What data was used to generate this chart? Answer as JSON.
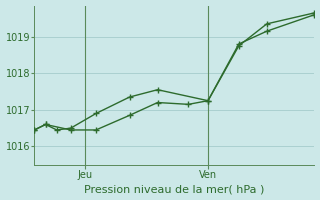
{
  "bg_color": "#cce8e8",
  "grid_color": "#aad0d0",
  "line_color": "#2d6b2d",
  "spine_color": "#5a8a5a",
  "title": "Pression niveau de la mer( hPa )",
  "ylim": [
    1015.5,
    1019.85
  ],
  "yticks": [
    1016,
    1017,
    1018,
    1019
  ],
  "x_label_jeu": "Jeu",
  "x_label_ven": "Ven",
  "vline_jeu": 0.18,
  "vline_ven": 0.62,
  "xlim": [
    0.0,
    1.0
  ],
  "series1_x": [
    0.0,
    0.04,
    0.08,
    0.13,
    0.22,
    0.34,
    0.44,
    0.62,
    0.73,
    0.83,
    1.0
  ],
  "series1_y": [
    1016.45,
    1016.6,
    1016.45,
    1016.5,
    1016.9,
    1017.35,
    1017.55,
    1017.25,
    1018.8,
    1019.15,
    1019.6
  ],
  "series2_x": [
    0.0,
    0.04,
    0.13,
    0.22,
    0.34,
    0.44,
    0.55,
    0.62,
    0.73,
    0.83,
    1.0
  ],
  "series2_y": [
    1016.45,
    1016.6,
    1016.45,
    1016.45,
    1016.85,
    1017.2,
    1017.15,
    1017.25,
    1018.75,
    1019.35,
    1019.65
  ]
}
